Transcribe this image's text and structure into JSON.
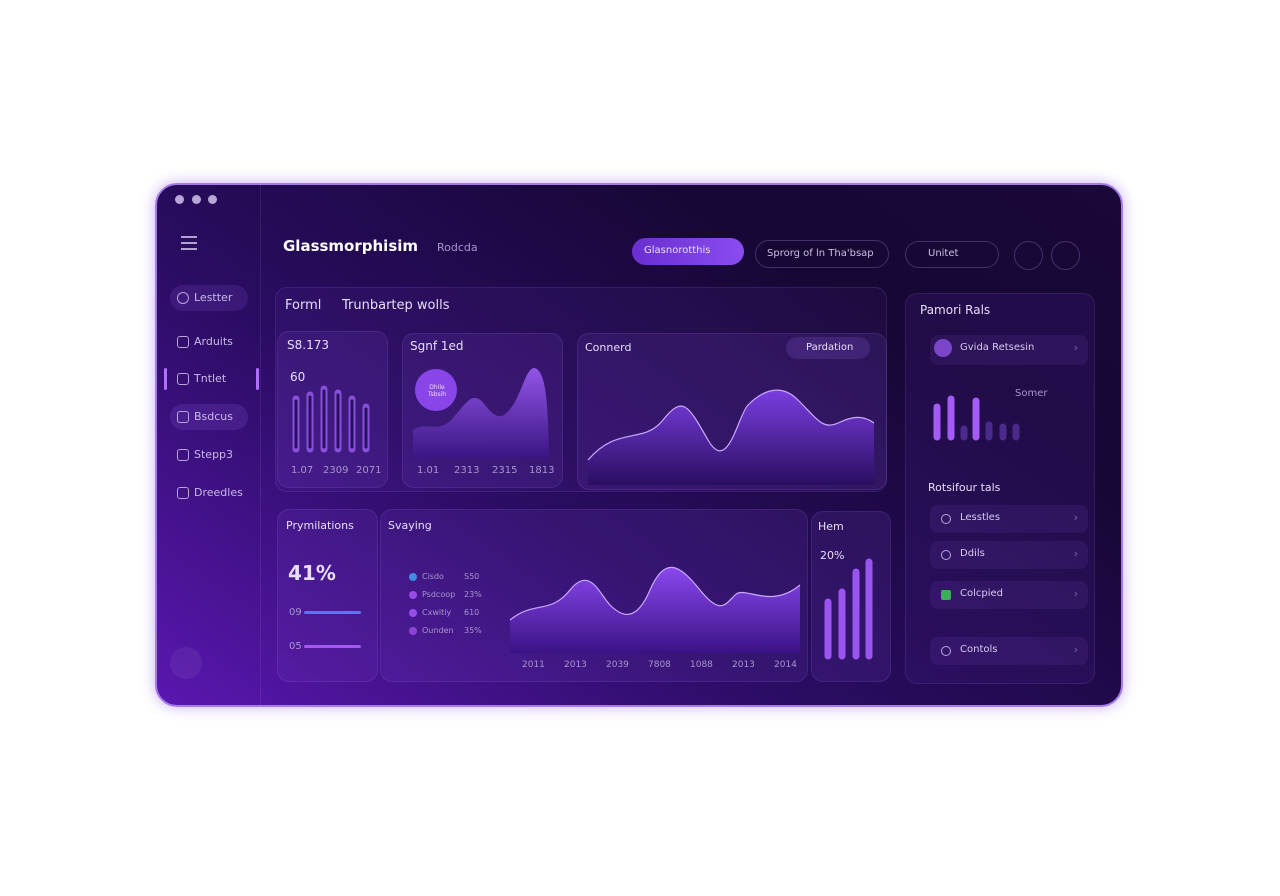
{
  "window": {
    "title": "Glassmorphisim",
    "subtitle": "Rodcda"
  },
  "header": {
    "primary_button": "Glasnorotthis",
    "secondary_button": "Sprorg of ln Tha'bsap",
    "search": "Unitet"
  },
  "sidebar": {
    "search": "Lestter",
    "items": [
      "Arduits",
      "Tntlet",
      "Bsdcus",
      "Stepp3",
      "Dreedles"
    ]
  },
  "main": {
    "title": "Forml",
    "subtitle": "Trunbartep wolls",
    "card_1": {
      "title": "S8.173",
      "value": "60",
      "labels": [
        "1.07",
        "2309",
        "2071"
      ]
    },
    "card_2": {
      "title": "Sgnf 1ed",
      "badge": "Dhile Tsbsih",
      "labels": [
        "1.01",
        "2313",
        "2315",
        "1813"
      ]
    },
    "card_3": {
      "title": "Connerd",
      "button": "Pardation"
    }
  },
  "bottom": {
    "card_1": {
      "title": "Prymilations",
      "value": "41%",
      "bars": [
        "09",
        "05"
      ]
    },
    "card_2": {
      "title": "Svaying",
      "legend": [
        [
          "Cisdo",
          "S50"
        ],
        [
          "Psdcoop",
          "23%"
        ],
        [
          "Cxwitiy",
          "610"
        ],
        [
          "Ounden",
          "35%"
        ]
      ],
      "labels": [
        "2011",
        "2013",
        "2039",
        "7808",
        "1088",
        "2013",
        "2014"
      ]
    },
    "card_3": {
      "title": "Hem",
      "value": "20%"
    }
  },
  "right_panel": {
    "title": "Pamori Rals",
    "user": "Gvida Retsesin",
    "chart_label": "Somer",
    "section": "Rotsifour tals",
    "items": [
      "Lesstles",
      "Ddils",
      "Colcpied",
      "Contols"
    ]
  }
}
